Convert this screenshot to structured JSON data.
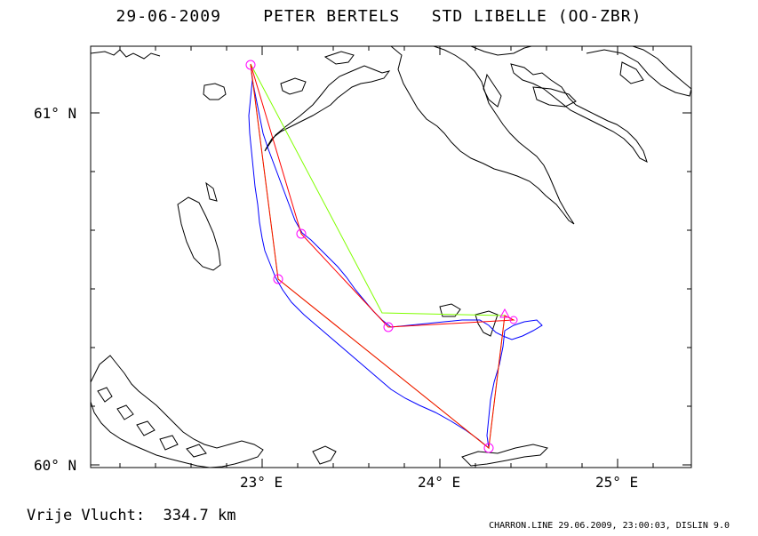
{
  "header": {
    "date": "29-06-2009",
    "pilot": "PETER BERTELS",
    "glider": "STD LIBELLE (OO-ZBR)"
  },
  "axes": {
    "lat_labels": [
      "61° N",
      "60° N"
    ],
    "lon_labels": [
      "23° E",
      "24° E",
      "25° E"
    ],
    "lon_range": [
      22.0,
      25.5
    ],
    "lat_range": [
      59.99,
      61.15
    ]
  },
  "legend": {},
  "footer": {
    "distance_label": "Vrije Vlucht:",
    "distance_value": "334.7 km",
    "credit": "CHARRON.LINE 29.06.2009, 23:00:03, DISLIN 9.0"
  },
  "colors": {
    "track": "#0000ff",
    "optimized_route": "#ff0000",
    "declared_route": "#80ff00",
    "turnpoint": "#ff00ff",
    "coast": "#000000"
  }
}
